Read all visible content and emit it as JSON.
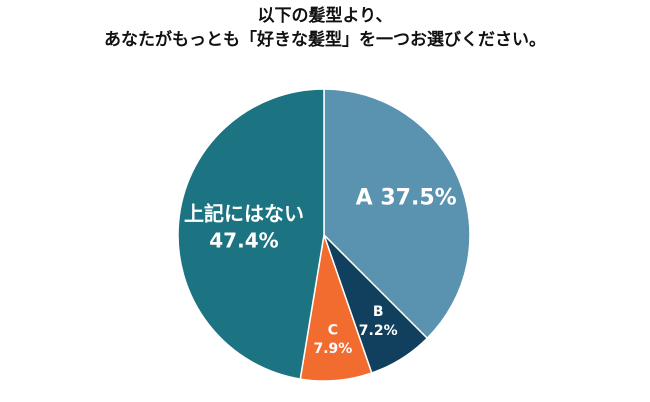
{
  "chart_data": {
    "type": "pie",
    "title_lines": [
      "以下の髪型より、",
      "あなたがもっとも「好きな髪型」を一つお選びください。"
    ],
    "slices": [
      {
        "label": "A",
        "value": 37.5,
        "value_text": "37.5%",
        "color": "#5a93b0"
      },
      {
        "label": "B",
        "value": 7.2,
        "value_text": "7.2%",
        "color": "#10405d"
      },
      {
        "label": "C",
        "value": 7.9,
        "value_text": "7.9%",
        "color": "#f26b2f"
      },
      {
        "label": "上記にはない",
        "value": 47.4,
        "value_text": "47.4%",
        "color": "#1c7382"
      }
    ],
    "start": "12 o'clock",
    "direction": "clockwise"
  }
}
